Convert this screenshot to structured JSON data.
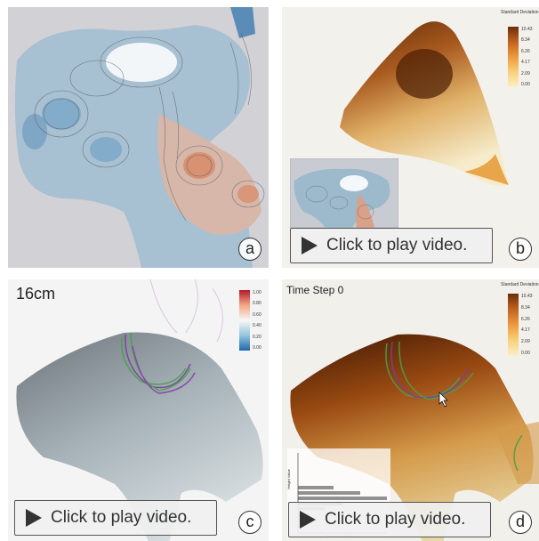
{
  "panels": {
    "a": {
      "letter": "a"
    },
    "b": {
      "letter": "b",
      "legend_title": "Standard Deviation",
      "ticks": [
        "10.43",
        "8.34",
        "6.26",
        "4.17",
        "2.09",
        "0.00"
      ],
      "play_label": "Click to play video."
    },
    "c": {
      "letter": "c",
      "depth_label": "16cm",
      "ticks": [
        "1.00",
        "0.80",
        "0.60",
        "0.40",
        "0.20",
        "0.00"
      ],
      "play_label": "Click to play video."
    },
    "d": {
      "letter": "d",
      "time_label": "Time Step 0",
      "legend_title": "Standard Deviation",
      "ticks": [
        "10.43",
        "8.34",
        "6.26",
        "4.17",
        "2.09",
        "0.00"
      ],
      "play_label": "Click to play video.",
      "hist_ylabel": "Height Value",
      "hist_xlabel": "Number of Members"
    }
  },
  "colors": {
    "blue": "#6a9cc4",
    "orange": "#d9805a",
    "brown": "#6b2e0a",
    "yellow": "#f3e6b5",
    "green": "#4aa04a",
    "purple": "#7a3fa0"
  }
}
